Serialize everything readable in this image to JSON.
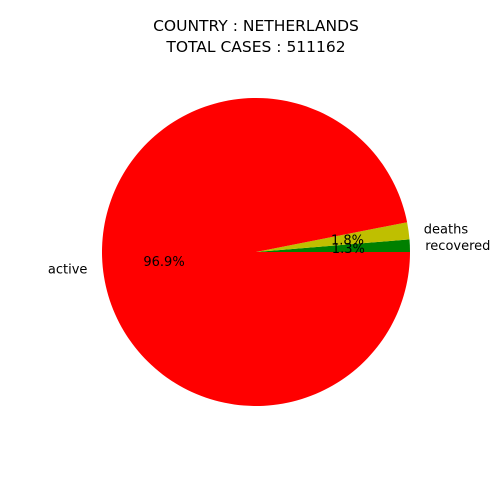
{
  "chart_data": {
    "type": "pie",
    "title": "COUNTRY : NETHERLANDS",
    "subtitle": "TOTAL CASES : 511162",
    "slices": [
      {
        "label": "recovered",
        "percent": 1.3,
        "color": "#008000"
      },
      {
        "label": "deaths",
        "percent": 1.8,
        "color": "#bfbf00"
      },
      {
        "label": "active",
        "percent": 96.9,
        "color": "#ff0000"
      }
    ],
    "start_angle_deg": 0,
    "direction": "counterclockwise"
  }
}
